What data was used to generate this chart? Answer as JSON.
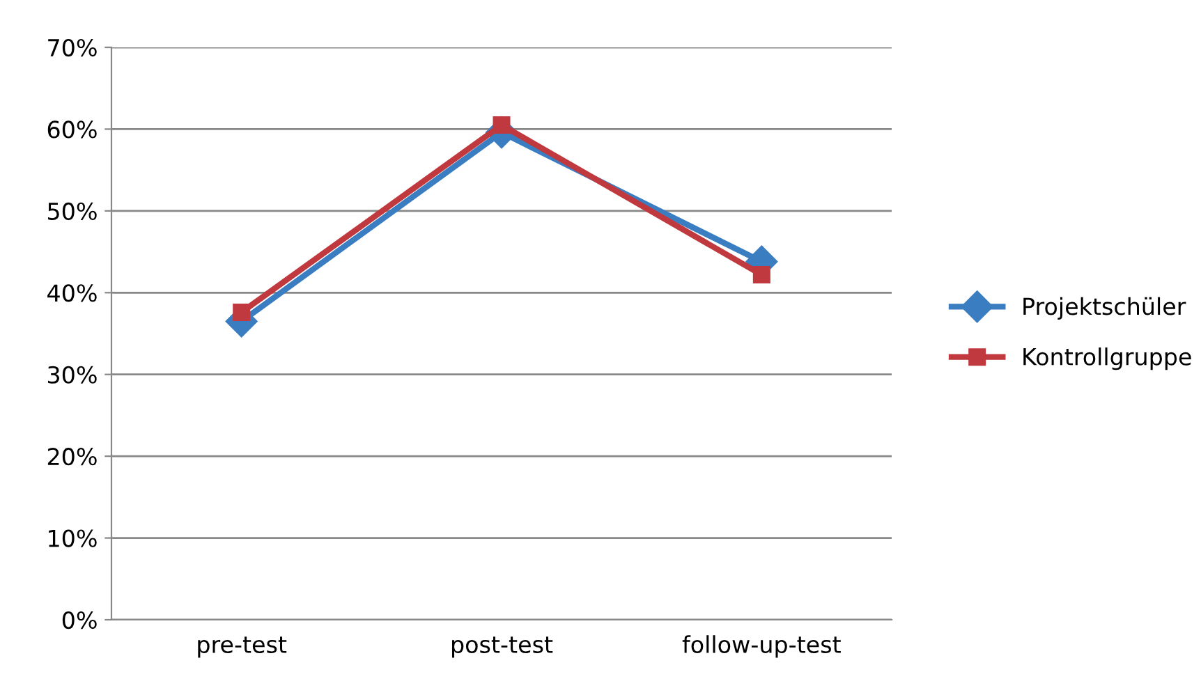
{
  "chart_data": {
    "type": "line",
    "categories": [
      "pre-test",
      "post-test",
      "follow-up-test"
    ],
    "series": [
      {
        "name": "Projektschüler",
        "color": "#3a7dc0",
        "marker": "diamond",
        "values": [
          36.5,
          59.6,
          43.8
        ]
      },
      {
        "name": "Kontrollgruppe",
        "color": "#c0393f",
        "marker": "square",
        "values": [
          37.6,
          60.5,
          42.2
        ]
      }
    ],
    "ylim": [
      0,
      70
    ],
    "yticks": [
      {
        "value": 0,
        "label": "0%"
      },
      {
        "value": 10,
        "label": "10%"
      },
      {
        "value": 20,
        "label": "20%"
      },
      {
        "value": 30,
        "label": "30%"
      },
      {
        "value": 40,
        "label": "40%"
      },
      {
        "value": 50,
        "label": "50%"
      },
      {
        "value": 60,
        "label": "60%"
      },
      {
        "value": 70,
        "label": "70%"
      }
    ],
    "grid": "y",
    "legend": "right",
    "line_style": "solid"
  }
}
